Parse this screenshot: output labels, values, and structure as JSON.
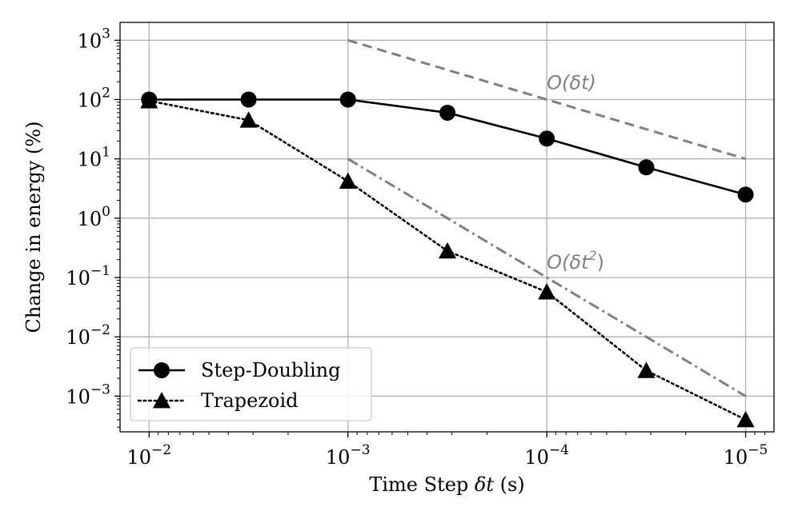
{
  "chart_data": {
    "type": "line",
    "title": "",
    "xlabel_prefix": "Time Step ",
    "xlabel_var": "δt",
    "xlabel_suffix": " (s)",
    "ylabel": "Change in energy (%)",
    "x_scale": "log",
    "x_reversed": true,
    "y_scale": "log",
    "xlim": [
      0.014,
      7.2e-06
    ],
    "ylim": [
      0.00025,
      2000
    ],
    "grid": true,
    "x_ticks": [
      {
        "value": 0.01,
        "base": "10",
        "exp": "−2"
      },
      {
        "value": 0.001,
        "base": "10",
        "exp": "−3"
      },
      {
        "value": 0.0001,
        "base": "10",
        "exp": "−4"
      },
      {
        "value": 1e-05,
        "base": "10",
        "exp": "−5"
      }
    ],
    "y_ticks": [
      {
        "value": 1000,
        "base": "10",
        "exp": "3"
      },
      {
        "value": 100,
        "base": "10",
        "exp": "2"
      },
      {
        "value": 10,
        "base": "10",
        "exp": "1"
      },
      {
        "value": 1,
        "base": "10",
        "exp": "0"
      },
      {
        "value": 0.1,
        "base": "10",
        "exp": "−1"
      },
      {
        "value": 0.01,
        "base": "10",
        "exp": "−2"
      },
      {
        "value": 0.001,
        "base": "10",
        "exp": "−3"
      }
    ],
    "x": [
      0.01,
      0.00316,
      0.001,
      0.000316,
      0.0001,
      3.16e-05,
      1e-05
    ],
    "series": [
      {
        "name": "Step-Doubling",
        "marker": "circle",
        "line": "solid",
        "color": "#000000",
        "values": [
          100,
          100,
          100,
          60,
          22,
          7.2,
          2.5
        ]
      },
      {
        "name": "Trapezoid",
        "marker": "triangle",
        "line": "dotted",
        "color": "#000000",
        "values": [
          95,
          45,
          4.2,
          0.28,
          0.057,
          0.0027,
          0.0004
        ]
      }
    ],
    "reference_lines": [
      {
        "name": "O(δt)",
        "label_main": "O(δt)",
        "label_sup": "",
        "style": "dashed",
        "color": "#808080",
        "x": [
          0.001,
          1e-05
        ],
        "y": [
          1000,
          10
        ],
        "label_x": 0.0001,
        "label_y": 150
      },
      {
        "name": "O(δt²)",
        "label_main": "O(δt",
        "label_sup": "2",
        "style": "dashdot",
        "color": "#808080",
        "x": [
          0.001,
          1e-05
        ],
        "y": [
          10,
          0.001
        ],
        "label_x": 0.0001,
        "label_y": 0.14
      }
    ],
    "legend": {
      "position": "lower-left",
      "entries": [
        "Step-Doubling",
        "Trapezoid"
      ]
    }
  }
}
